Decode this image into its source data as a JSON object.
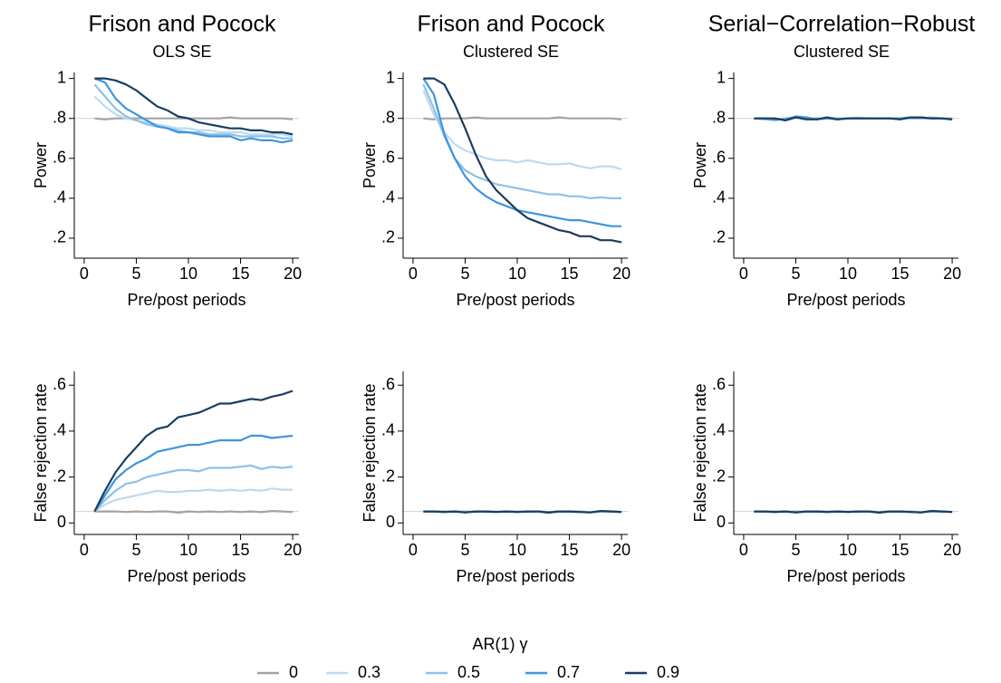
{
  "legend": {
    "title": "AR(1) γ",
    "entries": [
      {
        "name": "0",
        "color": "#a3a3a3"
      },
      {
        "name": "0.3",
        "color": "#bcdaf0"
      },
      {
        "name": "0.5",
        "color": "#8ec0e8"
      },
      {
        "name": "0.7",
        "color": "#3e95df"
      },
      {
        "name": "0.9",
        "color": "#1b3d60"
      }
    ]
  },
  "chart_data": [
    {
      "type": "line",
      "title": "Frison and Pocock",
      "subtitle": "OLS SE",
      "xlabel": "Pre/post periods",
      "ylabel": "Power",
      "x": [
        1,
        2,
        3,
        4,
        5,
        6,
        7,
        8,
        9,
        10,
        11,
        12,
        13,
        14,
        15,
        16,
        17,
        18,
        19,
        20
      ],
      "xlim": [
        -0.95,
        20.6
      ],
      "ylim": [
        0.1,
        1.03
      ],
      "xticks": [
        0,
        5,
        10,
        15,
        20
      ],
      "yticks": [
        {
          "value": 0.2,
          "label": ".2"
        },
        {
          "value": 0.4,
          "label": ".4"
        },
        {
          "value": 0.6,
          "label": ".6"
        },
        {
          "value": 0.8,
          "label": ".8"
        },
        1
      ],
      "hline": 0.8,
      "series": [
        {
          "values": [
            0.8,
            0.795,
            0.8,
            0.8,
            0.8,
            0.8,
            0.8,
            0.8,
            0.8,
            0.8,
            0.8,
            0.8,
            0.8,
            0.805,
            0.8,
            0.8,
            0.8,
            0.8,
            0.8,
            0.795
          ]
        },
        {
          "values": [
            0.91,
            0.86,
            0.82,
            0.8,
            0.79,
            0.78,
            0.77,
            0.76,
            0.75,
            0.75,
            0.74,
            0.74,
            0.73,
            0.73,
            0.73,
            0.72,
            0.72,
            0.72,
            0.72,
            0.71
          ]
        },
        {
          "values": [
            0.97,
            0.91,
            0.85,
            0.81,
            0.79,
            0.77,
            0.76,
            0.75,
            0.74,
            0.73,
            0.73,
            0.72,
            0.72,
            0.72,
            0.71,
            0.71,
            0.71,
            0.71,
            0.7,
            0.7
          ]
        },
        {
          "values": [
            1.0,
            0.98,
            0.9,
            0.85,
            0.82,
            0.79,
            0.76,
            0.75,
            0.73,
            0.73,
            0.72,
            0.71,
            0.71,
            0.71,
            0.69,
            0.7,
            0.69,
            0.69,
            0.68,
            0.69
          ]
        },
        {
          "values": [
            1.0,
            1.0,
            0.99,
            0.97,
            0.94,
            0.9,
            0.86,
            0.84,
            0.81,
            0.8,
            0.78,
            0.77,
            0.76,
            0.75,
            0.75,
            0.74,
            0.74,
            0.73,
            0.73,
            0.72
          ]
        }
      ]
    },
    {
      "type": "line",
      "title": "Frison and Pocock",
      "subtitle": "Clustered SE",
      "xlabel": "Pre/post periods",
      "ylabel": "Power",
      "x": [
        1,
        2,
        3,
        4,
        5,
        6,
        7,
        8,
        9,
        10,
        11,
        12,
        13,
        14,
        15,
        16,
        17,
        18,
        19,
        20
      ],
      "xlim": [
        -0.95,
        20.6
      ],
      "ylim": [
        0.1,
        1.03
      ],
      "xticks": [
        0,
        5,
        10,
        15,
        20
      ],
      "yticks": [
        {
          "value": 0.2,
          "label": ".2"
        },
        {
          "value": 0.4,
          "label": ".4"
        },
        {
          "value": 0.6,
          "label": ".6"
        },
        {
          "value": 0.8,
          "label": ".8"
        },
        1
      ],
      "hline": 0.8,
      "series": [
        {
          "values": [
            0.8,
            0.795,
            0.8,
            0.8,
            0.8,
            0.805,
            0.8,
            0.8,
            0.8,
            0.8,
            0.8,
            0.8,
            0.8,
            0.805,
            0.8,
            0.8,
            0.8,
            0.8,
            0.8,
            0.795
          ]
        },
        {
          "values": [
            0.94,
            0.82,
            0.73,
            0.67,
            0.64,
            0.62,
            0.6,
            0.59,
            0.59,
            0.58,
            0.59,
            0.58,
            0.57,
            0.57,
            0.575,
            0.56,
            0.55,
            0.56,
            0.56,
            0.545
          ]
        },
        {
          "values": [
            0.97,
            0.85,
            0.71,
            0.6,
            0.54,
            0.51,
            0.49,
            0.47,
            0.46,
            0.45,
            0.44,
            0.43,
            0.42,
            0.42,
            0.41,
            0.41,
            0.4,
            0.405,
            0.4,
            0.4
          ]
        },
        {
          "values": [
            1.0,
            0.92,
            0.72,
            0.6,
            0.51,
            0.45,
            0.41,
            0.38,
            0.36,
            0.34,
            0.33,
            0.32,
            0.31,
            0.3,
            0.29,
            0.29,
            0.28,
            0.27,
            0.26,
            0.26
          ]
        },
        {
          "values": [
            1.0,
            1.0,
            0.97,
            0.87,
            0.75,
            0.62,
            0.51,
            0.44,
            0.39,
            0.34,
            0.3,
            0.28,
            0.26,
            0.24,
            0.23,
            0.21,
            0.21,
            0.19,
            0.19,
            0.18
          ]
        }
      ]
    },
    {
      "type": "line",
      "title": "Serial−Correlation−Robust",
      "subtitle": "Clustered SE",
      "xlabel": "Pre/post periods",
      "ylabel": "Power",
      "x": [
        1,
        2,
        3,
        4,
        5,
        6,
        7,
        8,
        9,
        10,
        11,
        12,
        13,
        14,
        15,
        16,
        17,
        18,
        19,
        20
      ],
      "xlim": [
        -0.95,
        20.6
      ],
      "ylim": [
        0.1,
        1.03
      ],
      "xticks": [
        0,
        5,
        10,
        15,
        20
      ],
      "yticks": [
        {
          "value": 0.2,
          "label": ".2"
        },
        {
          "value": 0.4,
          "label": ".4"
        },
        {
          "value": 0.6,
          "label": ".6"
        },
        {
          "value": 0.8,
          "label": ".8"
        },
        1
      ],
      "hline": 0.8,
      "series": [
        {
          "values": [
            0.8,
            0.8,
            0.795,
            0.8,
            0.805,
            0.8,
            0.8,
            0.8,
            0.8,
            0.8,
            0.8,
            0.8,
            0.8,
            0.8,
            0.8,
            0.8,
            0.8,
            0.8,
            0.8,
            0.8
          ]
        },
        {
          "values": [
            0.8,
            0.8,
            0.79,
            0.8,
            0.805,
            0.8,
            0.795,
            0.805,
            0.8,
            0.8,
            0.805,
            0.8,
            0.8,
            0.8,
            0.8,
            0.805,
            0.8,
            0.8,
            0.8,
            0.795
          ]
        },
        {
          "values": [
            0.8,
            0.795,
            0.79,
            0.8,
            0.805,
            0.805,
            0.795,
            0.8,
            0.8,
            0.8,
            0.8,
            0.8,
            0.8,
            0.8,
            0.8,
            0.8,
            0.8,
            0.805,
            0.8,
            0.795
          ]
        },
        {
          "values": [
            0.8,
            0.8,
            0.795,
            0.795,
            0.81,
            0.805,
            0.795,
            0.8,
            0.795,
            0.8,
            0.8,
            0.8,
            0.8,
            0.8,
            0.8,
            0.805,
            0.805,
            0.8,
            0.8,
            0.795
          ]
        },
        {
          "values": [
            0.8,
            0.8,
            0.8,
            0.79,
            0.805,
            0.795,
            0.795,
            0.805,
            0.795,
            0.8,
            0.8,
            0.8,
            0.8,
            0.8,
            0.795,
            0.805,
            0.805,
            0.8,
            0.8,
            0.795
          ]
        }
      ]
    },
    {
      "type": "line",
      "xlabel": "Pre/post periods",
      "ylabel": "False rejection rate",
      "x": [
        1,
        2,
        3,
        4,
        5,
        6,
        7,
        8,
        9,
        10,
        11,
        12,
        13,
        14,
        15,
        16,
        17,
        18,
        19,
        20
      ],
      "xlim": [
        -0.95,
        20.6
      ],
      "ylim": [
        -0.05,
        0.66
      ],
      "xticks": [
        0,
        5,
        10,
        15,
        20
      ],
      "yticks": [
        0,
        {
          "value": 0.2,
          "label": ".2"
        },
        {
          "value": 0.4,
          "label": ".4"
        },
        {
          "value": 0.6,
          "label": ".6"
        }
      ],
      "hline": 0.05,
      "series": [
        {
          "values": [
            0.05,
            0.05,
            0.05,
            0.048,
            0.05,
            0.048,
            0.05,
            0.05,
            0.045,
            0.05,
            0.048,
            0.05,
            0.048,
            0.05,
            0.048,
            0.05,
            0.047,
            0.052,
            0.05,
            0.048
          ]
        },
        {
          "values": [
            0.05,
            0.08,
            0.1,
            0.11,
            0.12,
            0.13,
            0.14,
            0.135,
            0.135,
            0.14,
            0.14,
            0.145,
            0.14,
            0.145,
            0.14,
            0.145,
            0.14,
            0.15,
            0.145,
            0.145
          ]
        },
        {
          "values": [
            0.05,
            0.1,
            0.14,
            0.17,
            0.18,
            0.2,
            0.21,
            0.22,
            0.23,
            0.23,
            0.225,
            0.24,
            0.24,
            0.24,
            0.245,
            0.25,
            0.235,
            0.245,
            0.24,
            0.245
          ]
        },
        {
          "values": [
            0.05,
            0.12,
            0.19,
            0.23,
            0.26,
            0.28,
            0.31,
            0.32,
            0.33,
            0.34,
            0.34,
            0.35,
            0.36,
            0.36,
            0.36,
            0.38,
            0.38,
            0.37,
            0.375,
            0.38
          ]
        },
        {
          "values": [
            0.05,
            0.14,
            0.22,
            0.28,
            0.33,
            0.38,
            0.41,
            0.42,
            0.46,
            0.47,
            0.48,
            0.5,
            0.52,
            0.52,
            0.53,
            0.54,
            0.535,
            0.55,
            0.56,
            0.575
          ]
        }
      ]
    },
    {
      "type": "line",
      "xlabel": "Pre/post periods",
      "ylabel": "False rejection rate",
      "x": [
        1,
        2,
        3,
        4,
        5,
        6,
        7,
        8,
        9,
        10,
        11,
        12,
        13,
        14,
        15,
        16,
        17,
        18,
        19,
        20
      ],
      "xlim": [
        -0.95,
        20.6
      ],
      "ylim": [
        -0.05,
        0.66
      ],
      "xticks": [
        0,
        5,
        10,
        15,
        20
      ],
      "yticks": [
        0,
        {
          "value": 0.2,
          "label": ".2"
        },
        {
          "value": 0.4,
          "label": ".4"
        },
        {
          "value": 0.6,
          "label": ".6"
        }
      ],
      "hline": 0.05,
      "series": [
        {
          "values": [
            0.05,
            0.05,
            0.05,
            0.048,
            0.05,
            0.048,
            0.05,
            0.05,
            0.048,
            0.05,
            0.048,
            0.05,
            0.048,
            0.05,
            0.048,
            0.05,
            0.047,
            0.05,
            0.05,
            0.048
          ]
        },
        {
          "values": [
            0.05,
            0.05,
            0.048,
            0.05,
            0.046,
            0.05,
            0.048,
            0.05,
            0.048,
            0.05,
            0.05,
            0.05,
            0.045,
            0.05,
            0.05,
            0.048,
            0.047,
            0.05,
            0.05,
            0.048
          ]
        },
        {
          "values": [
            0.05,
            0.05,
            0.048,
            0.05,
            0.046,
            0.05,
            0.048,
            0.048,
            0.05,
            0.048,
            0.05,
            0.05,
            0.045,
            0.05,
            0.05,
            0.048,
            0.046,
            0.05,
            0.05,
            0.048
          ]
        },
        {
          "values": [
            0.05,
            0.05,
            0.048,
            0.05,
            0.046,
            0.05,
            0.05,
            0.048,
            0.05,
            0.048,
            0.05,
            0.05,
            0.045,
            0.05,
            0.05,
            0.048,
            0.046,
            0.052,
            0.05,
            0.048
          ]
        },
        {
          "values": [
            0.05,
            0.05,
            0.048,
            0.05,
            0.046,
            0.05,
            0.05,
            0.048,
            0.05,
            0.048,
            0.05,
            0.05,
            0.045,
            0.05,
            0.05,
            0.048,
            0.046,
            0.052,
            0.05,
            0.048
          ]
        }
      ]
    },
    {
      "type": "line",
      "xlabel": "Pre/post periods",
      "ylabel": "False rejection rate",
      "x": [
        1,
        2,
        3,
        4,
        5,
        6,
        7,
        8,
        9,
        10,
        11,
        12,
        13,
        14,
        15,
        16,
        17,
        18,
        19,
        20
      ],
      "xlim": [
        -0.95,
        20.6
      ],
      "ylim": [
        -0.05,
        0.66
      ],
      "xticks": [
        0,
        5,
        10,
        15,
        20
      ],
      "yticks": [
        0,
        {
          "value": 0.2,
          "label": ".2"
        },
        {
          "value": 0.4,
          "label": ".4"
        },
        {
          "value": 0.6,
          "label": ".6"
        }
      ],
      "hline": 0.05,
      "series": [
        {
          "values": [
            0.05,
            0.05,
            0.05,
            0.048,
            0.05,
            0.048,
            0.05,
            0.05,
            0.048,
            0.05,
            0.048,
            0.05,
            0.048,
            0.05,
            0.048,
            0.05,
            0.047,
            0.05,
            0.05,
            0.048
          ]
        },
        {
          "values": [
            0.05,
            0.05,
            0.048,
            0.05,
            0.046,
            0.05,
            0.048,
            0.05,
            0.048,
            0.05,
            0.05,
            0.05,
            0.045,
            0.05,
            0.05,
            0.048,
            0.047,
            0.05,
            0.05,
            0.048
          ]
        },
        {
          "values": [
            0.05,
            0.05,
            0.048,
            0.05,
            0.046,
            0.05,
            0.048,
            0.048,
            0.05,
            0.048,
            0.05,
            0.05,
            0.045,
            0.05,
            0.05,
            0.048,
            0.046,
            0.05,
            0.05,
            0.048
          ]
        },
        {
          "values": [
            0.05,
            0.05,
            0.048,
            0.05,
            0.046,
            0.05,
            0.05,
            0.048,
            0.05,
            0.048,
            0.05,
            0.05,
            0.045,
            0.05,
            0.05,
            0.048,
            0.046,
            0.052,
            0.05,
            0.048
          ]
        },
        {
          "values": [
            0.05,
            0.05,
            0.048,
            0.05,
            0.046,
            0.05,
            0.05,
            0.048,
            0.05,
            0.048,
            0.05,
            0.05,
            0.045,
            0.05,
            0.05,
            0.048,
            0.046,
            0.052,
            0.05,
            0.048
          ]
        }
      ]
    }
  ]
}
